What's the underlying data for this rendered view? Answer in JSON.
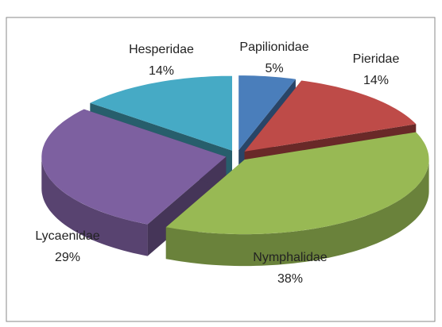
{
  "chart_data": {
    "type": "pie3d",
    "categories": [
      "Papilionidae",
      "Pieridae",
      "Nymphalidae",
      "Lycaenidae",
      "Hesperidae"
    ],
    "values": [
      5,
      14,
      38,
      29,
      14
    ],
    "value_labels": [
      "5%",
      "14%",
      "38%",
      "29%",
      "14%"
    ],
    "colors": [
      "#4a7ebb",
      "#be4b48",
      "#98b954",
      "#7d60a0",
      "#46aac5"
    ]
  }
}
